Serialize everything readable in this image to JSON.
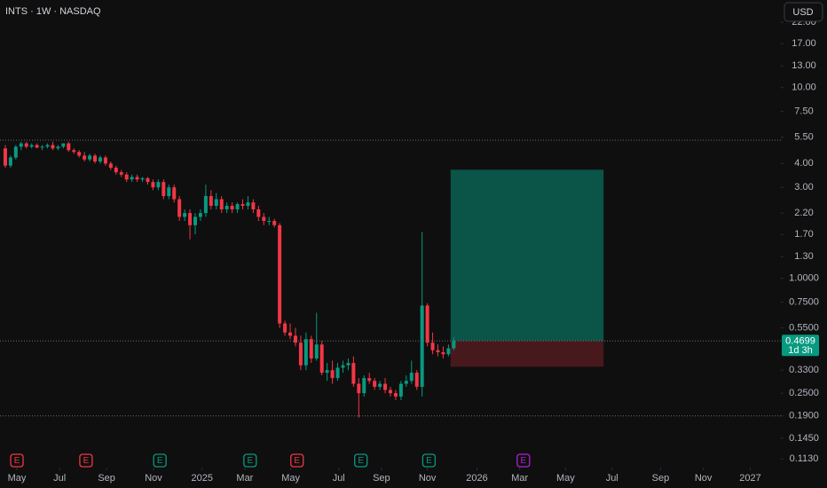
{
  "header": {
    "symbol": "INTS · 1W · NASDAQ",
    "currency": "USD"
  },
  "chart_data": {
    "type": "candlestick",
    "x": [
      1,
      2,
      3,
      4,
      5,
      6,
      7,
      8,
      9,
      10,
      11,
      12,
      13,
      14,
      15,
      16,
      17,
      18,
      19,
      20,
      21,
      22,
      23,
      24,
      25,
      26,
      27,
      28,
      29,
      30,
      31,
      32,
      33,
      34,
      35,
      36,
      37,
      38,
      39,
      40,
      41,
      42,
      43,
      44,
      45,
      46,
      47,
      48,
      49,
      50,
      51,
      52,
      53,
      54,
      55,
      56,
      57,
      58,
      59,
      60,
      61,
      62,
      63,
      64,
      65,
      66,
      67,
      68,
      69,
      70,
      71,
      72,
      73,
      74,
      75,
      76,
      77,
      78,
      79,
      80,
      81,
      82,
      83,
      84,
      85,
      86
    ],
    "open": [
      4.8,
      3.9,
      4.3,
      4.9,
      5.1,
      4.9,
      5.0,
      4.85,
      4.9,
      5.0,
      4.8,
      4.9,
      5.1,
      4.7,
      4.6,
      4.4,
      4.2,
      4.4,
      4.1,
      4.3,
      4.0,
      3.8,
      3.6,
      3.5,
      3.3,
      3.4,
      3.3,
      3.35,
      3.2,
      3.0,
      3.2,
      2.7,
      3.0,
      2.6,
      2.1,
      2.2,
      1.9,
      2.1,
      2.2,
      2.7,
      2.4,
      2.6,
      2.3,
      2.4,
      2.3,
      2.45,
      2.4,
      2.5,
      2.3,
      2.1,
      2.0,
      2.0,
      1.9,
      0.58,
      0.52,
      0.5,
      0.46,
      0.35,
      0.48,
      0.38,
      0.45,
      0.32,
      0.33,
      0.3,
      0.34,
      0.35,
      0.36,
      0.28,
      0.25,
      0.3,
      0.29,
      0.27,
      0.28,
      0.26,
      0.25,
      0.24,
      0.28,
      0.29,
      0.32,
      0.27,
      0.72,
      0.46,
      0.42,
      0.41,
      0.4,
      0.43
    ],
    "high": [
      5.0,
      4.4,
      5.0,
      5.2,
      5.2,
      5.1,
      5.1,
      5.0,
      5.1,
      5.2,
      5.0,
      5.1,
      5.2,
      4.8,
      4.7,
      4.6,
      4.5,
      4.5,
      4.4,
      4.4,
      4.1,
      3.9,
      3.7,
      3.6,
      3.5,
      3.5,
      3.4,
      3.4,
      3.3,
      3.3,
      3.3,
      3.1,
      3.1,
      2.7,
      2.3,
      2.3,
      2.2,
      2.3,
      3.1,
      2.9,
      2.8,
      2.7,
      2.5,
      2.5,
      2.5,
      2.6,
      2.7,
      2.6,
      2.4,
      2.2,
      2.1,
      2.05,
      1.95,
      0.6,
      0.58,
      0.55,
      0.5,
      0.52,
      0.5,
      0.66,
      0.47,
      0.36,
      0.37,
      0.36,
      0.37,
      0.38,
      0.39,
      0.3,
      0.31,
      0.32,
      0.3,
      0.29,
      0.3,
      0.27,
      0.26,
      0.29,
      0.31,
      0.37,
      0.33,
      1.75,
      0.74,
      0.52,
      0.45,
      0.44,
      0.45,
      0.49
    ],
    "low": [
      3.8,
      3.8,
      4.2,
      4.7,
      4.8,
      4.8,
      4.8,
      4.7,
      4.8,
      4.7,
      4.7,
      4.8,
      4.6,
      4.5,
      4.3,
      4.1,
      4.1,
      4.0,
      4.0,
      3.9,
      3.7,
      3.5,
      3.4,
      3.2,
      3.2,
      3.2,
      3.2,
      3.1,
      2.9,
      2.9,
      2.6,
      2.6,
      2.5,
      2.0,
      2.0,
      1.6,
      1.7,
      2.0,
      2.1,
      2.3,
      2.3,
      2.2,
      2.2,
      2.2,
      2.2,
      2.3,
      2.3,
      2.2,
      2.0,
      1.9,
      1.9,
      1.85,
      0.55,
      0.5,
      0.48,
      0.44,
      0.33,
      0.33,
      0.36,
      0.37,
      0.31,
      0.29,
      0.28,
      0.29,
      0.32,
      0.33,
      0.27,
      0.186,
      0.24,
      0.28,
      0.26,
      0.26,
      0.25,
      0.24,
      0.23,
      0.23,
      0.27,
      0.28,
      0.26,
      0.24,
      0.44,
      0.4,
      0.39,
      0.38,
      0.39,
      0.42
    ],
    "close": [
      3.9,
      4.3,
      4.9,
      5.1,
      4.9,
      5.0,
      4.85,
      4.9,
      5.0,
      4.8,
      4.9,
      5.1,
      4.7,
      4.6,
      4.4,
      4.2,
      4.4,
      4.1,
      4.3,
      4.0,
      3.8,
      3.6,
      3.5,
      3.3,
      3.4,
      3.3,
      3.35,
      3.2,
      3.0,
      3.2,
      2.7,
      3.0,
      2.6,
      2.1,
      2.2,
      1.9,
      2.1,
      2.2,
      2.7,
      2.4,
      2.6,
      2.3,
      2.4,
      2.3,
      2.45,
      2.4,
      2.5,
      2.3,
      2.1,
      2.0,
      2.0,
      1.9,
      0.58,
      0.52,
      0.5,
      0.46,
      0.35,
      0.48,
      0.38,
      0.45,
      0.32,
      0.33,
      0.3,
      0.34,
      0.35,
      0.36,
      0.28,
      0.25,
      0.3,
      0.29,
      0.27,
      0.28,
      0.26,
      0.25,
      0.24,
      0.28,
      0.29,
      0.32,
      0.27,
      0.72,
      0.46,
      0.42,
      0.41,
      0.4,
      0.43,
      0.4699
    ],
    "up_color": "#089981",
    "down_color": "#f23645",
    "xlim": [
      0,
      148
    ],
    "xticks": [
      {
        "value": 3.2,
        "label": "May"
      },
      {
        "value": 11.3,
        "label": "Jul"
      },
      {
        "value": 20.2,
        "label": "Sep"
      },
      {
        "value": 29.1,
        "label": "Nov"
      },
      {
        "value": 38.3,
        "label": "2025"
      },
      {
        "value": 46.4,
        "label": "Mar"
      },
      {
        "value": 55.1,
        "label": "May"
      },
      {
        "value": 64.2,
        "label": "Jul"
      },
      {
        "value": 72.3,
        "label": "Sep"
      },
      {
        "value": 81.0,
        "label": "Nov"
      },
      {
        "value": 90.4,
        "label": "2026"
      },
      {
        "value": 98.5,
        "label": "Mar"
      },
      {
        "value": 107.2,
        "label": "May"
      },
      {
        "value": 116.0,
        "label": "Jul"
      },
      {
        "value": 125.2,
        "label": "Sep"
      },
      {
        "value": 133.3,
        "label": "Nov"
      },
      {
        "value": 142.2,
        "label": "2027"
      }
    ],
    "ylim": [
      0.104,
      28.8
    ],
    "log_scale": true,
    "yticks": [
      {
        "value": 22,
        "label": "22.00"
      },
      {
        "value": 17,
        "label": "17.00"
      },
      {
        "value": 13,
        "label": "13.00"
      },
      {
        "value": 10,
        "label": "10.00"
      },
      {
        "value": 7.5,
        "label": "7.50"
      },
      {
        "value": 5.5,
        "label": "5.50"
      },
      {
        "value": 4,
        "label": "4.00"
      },
      {
        "value": 3,
        "label": "3.00"
      },
      {
        "value": 2.2,
        "label": "2.20"
      },
      {
        "value": 1.7,
        "label": "1.70"
      },
      {
        "value": 1.3,
        "label": "1.30"
      },
      {
        "value": 1,
        "label": "1.0000"
      },
      {
        "value": 0.75,
        "label": "0.7500"
      },
      {
        "value": 0.55,
        "label": "0.5500"
      },
      {
        "value": 0.33,
        "label": "0.3300"
      },
      {
        "value": 0.25,
        "label": "0.2500"
      },
      {
        "value": 0.19,
        "label": "0.1900"
      },
      {
        "value": 0.145,
        "label": "0.1450"
      },
      {
        "value": 0.113,
        "label": "0.1130"
      }
    ],
    "hlines": [
      5.3,
      0.19
    ],
    "position": {
      "entry": 0.4699,
      "target": 3.71,
      "stop": 0.344,
      "x_start": 85.4,
      "x_end": 114.4
    },
    "countdown": "1d 3h",
    "events": [
      {
        "x": 3.2,
        "label": "E",
        "color": "#f23645"
      },
      {
        "x": 16.3,
        "label": "E",
        "color": "#f23645"
      },
      {
        "x": 30.3,
        "label": "E",
        "color": "#089981"
      },
      {
        "x": 47.4,
        "label": "E",
        "color": "#089981"
      },
      {
        "x": 56.3,
        "label": "E",
        "color": "#f23645"
      },
      {
        "x": 68.4,
        "label": "E",
        "color": "#089981"
      },
      {
        "x": 81.3,
        "label": "E",
        "color": "#089981"
      },
      {
        "x": 99.2,
        "label": "E",
        "color": "#b121d6"
      }
    ]
  }
}
